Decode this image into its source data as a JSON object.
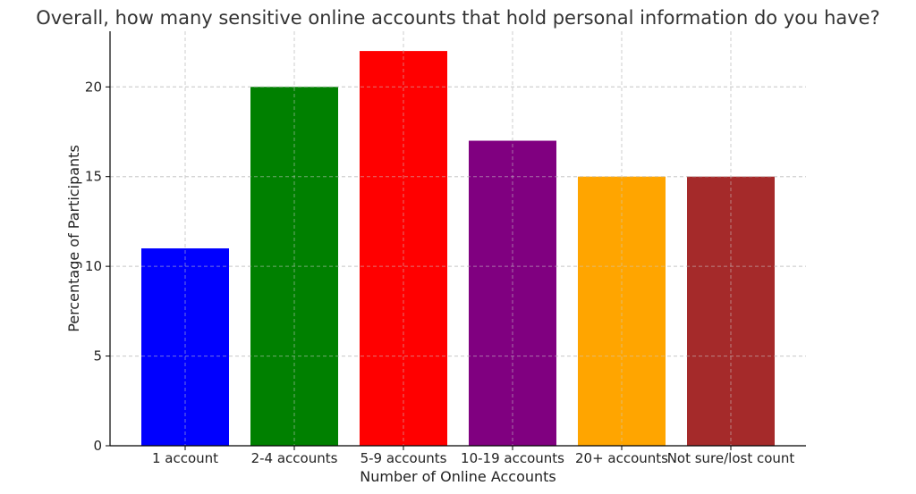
{
  "chart_data": {
    "type": "bar",
    "title": "Overall, how many sensitive online accounts that hold personal information do you have?",
    "xlabel": "Number of Online Accounts",
    "ylabel": "Percentage of Participants",
    "categories": [
      "1 account",
      "2-4 accounts",
      "5-9 accounts",
      "10-19 accounts",
      "20+ accounts",
      "Not sure/lost count"
    ],
    "values": [
      11,
      20,
      22,
      17,
      15,
      15
    ],
    "colors": [
      "#0000ff",
      "#008000",
      "#ff0000",
      "#800080",
      "#ffa500",
      "#a52a2a"
    ],
    "ylim": [
      0,
      23.1
    ],
    "yticks": [
      0,
      5,
      10,
      15,
      20
    ],
    "grid": true
  }
}
